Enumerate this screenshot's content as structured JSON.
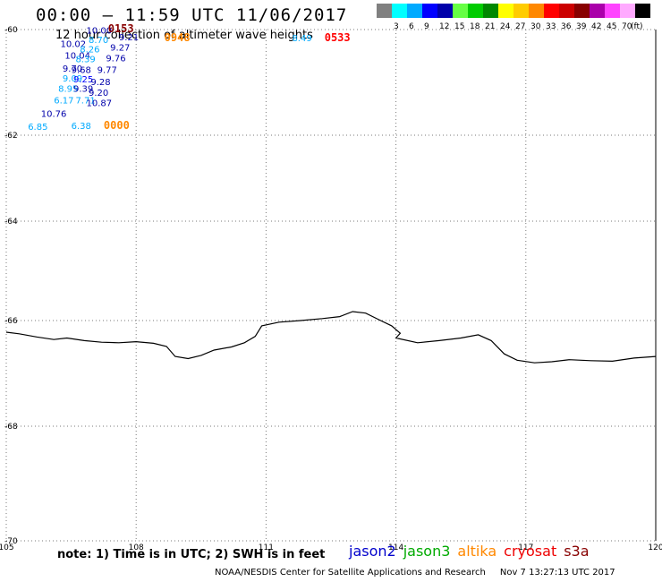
{
  "header": {
    "title": "00:00 – 11:59 UTC 11/06/2017",
    "subtitle": "12 hour collection of altimeter wave heights"
  },
  "legend": {
    "unit": "(ft)",
    "swatches": [
      {
        "color": "#808080",
        "label": ""
      },
      {
        "color": "#00ffff",
        "label": "3"
      },
      {
        "color": "#00aaff",
        "label": "6"
      },
      {
        "color": "#0000ff",
        "label": "9"
      },
      {
        "color": "#0000aa",
        "label": "12"
      },
      {
        "color": "#66ff44",
        "label": "15"
      },
      {
        "color": "#00cc00",
        "label": "18"
      },
      {
        "color": "#008800",
        "label": "21"
      },
      {
        "color": "#ffff00",
        "label": "24"
      },
      {
        "color": "#ffcc00",
        "label": "27"
      },
      {
        "color": "#ff8800",
        "label": "30"
      },
      {
        "color": "#ff0000",
        "label": "33"
      },
      {
        "color": "#cc0000",
        "label": "36"
      },
      {
        "color": "#880000",
        "label": "39"
      },
      {
        "color": "#aa00aa",
        "label": "42"
      },
      {
        "color": "#ff44ff",
        "label": "45"
      },
      {
        "color": "#ffaaff",
        "label": "70"
      },
      {
        "color": "#000000",
        "label": ""
      }
    ]
  },
  "map": {
    "lat_labels": [
      "-60",
      "-62",
      "-64",
      "-66",
      "-68",
      "-70"
    ],
    "lon_labels": [
      "105",
      "108",
      "111",
      "114",
      "117",
      "120"
    ],
    "coastline": [
      [
        105.0,
        -66.22
      ],
      [
        105.3,
        -66.25
      ],
      [
        105.7,
        -66.31
      ],
      [
        106.1,
        -66.36
      ],
      [
        106.4,
        -66.33
      ],
      [
        106.8,
        -66.38
      ],
      [
        107.2,
        -66.41
      ],
      [
        107.6,
        -66.42
      ],
      [
        108.0,
        -66.4
      ],
      [
        108.4,
        -66.43
      ],
      [
        108.7,
        -66.49
      ],
      [
        108.9,
        -66.68
      ],
      [
        109.2,
        -66.72
      ],
      [
        109.5,
        -66.66
      ],
      [
        109.8,
        -66.56
      ],
      [
        110.2,
        -66.5
      ],
      [
        110.5,
        -66.42
      ],
      [
        110.75,
        -66.3
      ],
      [
        110.9,
        -66.1
      ],
      [
        111.3,
        -66.03
      ],
      [
        111.8,
        -66.0
      ],
      [
        112.3,
        -65.96
      ],
      [
        112.7,
        -65.92
      ],
      [
        113.0,
        -65.82
      ],
      [
        113.3,
        -65.85
      ],
      [
        113.6,
        -65.98
      ],
      [
        113.9,
        -66.1
      ],
      [
        114.1,
        -66.24
      ],
      [
        114.0,
        -66.33
      ],
      [
        114.5,
        -66.42
      ],
      [
        115.0,
        -66.38
      ],
      [
        115.5,
        -66.33
      ],
      [
        115.9,
        -66.27
      ],
      [
        116.2,
        -66.38
      ],
      [
        116.5,
        -66.63
      ],
      [
        116.8,
        -66.75
      ],
      [
        117.2,
        -66.8
      ],
      [
        117.6,
        -66.78
      ],
      [
        118.0,
        -66.74
      ],
      [
        118.5,
        -66.76
      ],
      [
        119.0,
        -66.77
      ],
      [
        119.5,
        -66.71
      ],
      [
        120.0,
        -66.68
      ]
    ],
    "observations": [
      {
        "lon": 106.85,
        "lat": -60.08,
        "text": "10.00",
        "color": "#0000aa"
      },
      {
        "lon": 106.25,
        "lat": -60.33,
        "text": "10.02",
        "color": "#0000aa"
      },
      {
        "lon": 106.9,
        "lat": -60.25,
        "text": "8.70",
        "color": "#00aaff"
      },
      {
        "lon": 106.35,
        "lat": -60.55,
        "text": "10.04",
        "color": "#0000aa"
      },
      {
        "lon": 106.7,
        "lat": -60.43,
        "text": "8.26",
        "color": "#00aaff"
      },
      {
        "lon": 106.6,
        "lat": -60.62,
        "text": "8.39",
        "color": "#00aaff"
      },
      {
        "lon": 106.3,
        "lat": -60.8,
        "text": "9.70",
        "color": "#0000aa"
      },
      {
        "lon": 106.5,
        "lat": -60.82,
        "text": "9.68",
        "color": "#0000aa"
      },
      {
        "lon": 106.3,
        "lat": -60.98,
        "text": "9.09",
        "color": "#00aaff"
      },
      {
        "lon": 106.55,
        "lat": -61.0,
        "text": "9.25",
        "color": "#0000ff"
      },
      {
        "lon": 106.2,
        "lat": -61.18,
        "text": "8.95",
        "color": "#00aaff"
      },
      {
        "lon": 106.55,
        "lat": -61.18,
        "text": "9.39",
        "color": "#0000aa"
      },
      {
        "lon": 106.1,
        "lat": -61.4,
        "text": "6.17",
        "color": "#00aaff"
      },
      {
        "lon": 106.6,
        "lat": -61.4,
        "text": "7.71",
        "color": "#00aaff"
      },
      {
        "lon": 105.8,
        "lat": -61.65,
        "text": "10.76",
        "color": "#0000aa"
      },
      {
        "lon": 105.5,
        "lat": -61.9,
        "text": "6.85",
        "color": "#00aaff"
      },
      {
        "lon": 107.6,
        "lat": -60.2,
        "text": "9.21",
        "color": "#0000aa"
      },
      {
        "lon": 107.4,
        "lat": -60.4,
        "text": "9.27",
        "color": "#0000aa"
      },
      {
        "lon": 107.3,
        "lat": -60.6,
        "text": "9.76",
        "color": "#0000aa"
      },
      {
        "lon": 107.1,
        "lat": -60.82,
        "text": "9.77",
        "color": "#0000aa"
      },
      {
        "lon": 106.95,
        "lat": -61.05,
        "text": "9.28",
        "color": "#0000aa"
      },
      {
        "lon": 106.9,
        "lat": -61.25,
        "text": "9.20",
        "color": "#0000aa"
      },
      {
        "lon": 106.85,
        "lat": -61.45,
        "text": "10.87",
        "color": "#0000aa"
      },
      {
        "lon": 106.5,
        "lat": -61.88,
        "text": "6.38",
        "color": "#00aaff"
      },
      {
        "lon": 111.6,
        "lat": -60.22,
        "text": "8.49",
        "color": "#00aaff"
      }
    ],
    "time_labels": [
      {
        "lon": 107.35,
        "lat": -60.05,
        "text": "0153",
        "color": "#880000"
      },
      {
        "lon": 108.65,
        "lat": -60.22,
        "text": "0948",
        "color": "#ff8800"
      },
      {
        "lon": 112.35,
        "lat": -60.22,
        "text": "0533",
        "color": "#ff0000"
      },
      {
        "lon": 107.25,
        "lat": -61.88,
        "text": "0000",
        "color": "#ff8800"
      }
    ]
  },
  "footer": {
    "note": "note: 1) Time is in UTC; 2) SWH is in feet",
    "satellites": [
      {
        "name": "jason2",
        "color": "#0000cc"
      },
      {
        "name": "jason3",
        "color": "#00aa00"
      },
      {
        "name": "altika",
        "color": "#ff8800"
      },
      {
        "name": "cryosat",
        "color": "#ee0000"
      },
      {
        "name": "s3a",
        "color": "#880000"
      }
    ],
    "credit": "NOAA/NESDIS Center for Satellite Applications and Research",
    "timestamp": "Nov  7 13:27:13 UTC 2017"
  }
}
